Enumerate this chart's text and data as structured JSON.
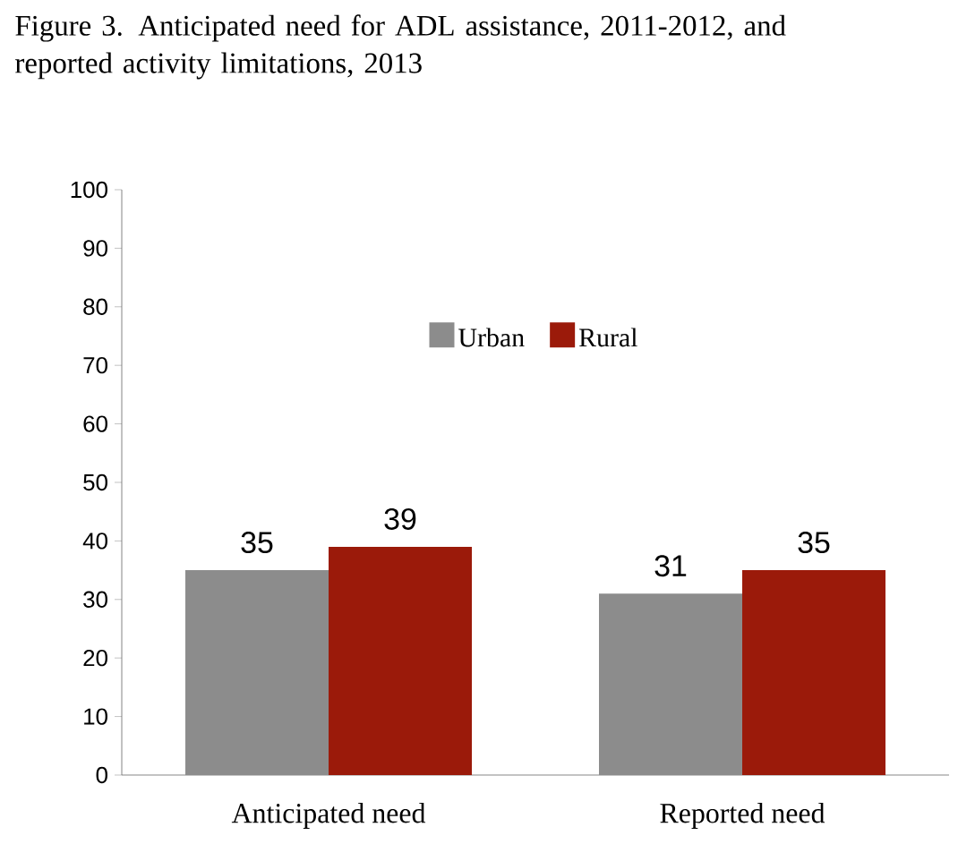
{
  "chart_data": {
    "type": "bar",
    "title": "Figure 3.  Anticipated need for ADL assistance, 2011-2012, and reported activity limitations, 2013",
    "categories": [
      "Anticipated need",
      "Reported need"
    ],
    "series": [
      {
        "name": "Urban",
        "color": "#8c8c8c",
        "values": [
          35,
          31
        ]
      },
      {
        "name": "Rural",
        "color": "#9b1a0a",
        "values": [
          39,
          35
        ]
      }
    ],
    "ylim": [
      0,
      100
    ],
    "yticks": [
      0,
      10,
      20,
      30,
      40,
      50,
      60,
      70,
      80,
      90,
      100
    ],
    "data_labels": true,
    "legend": "top",
    "grid": false
  }
}
